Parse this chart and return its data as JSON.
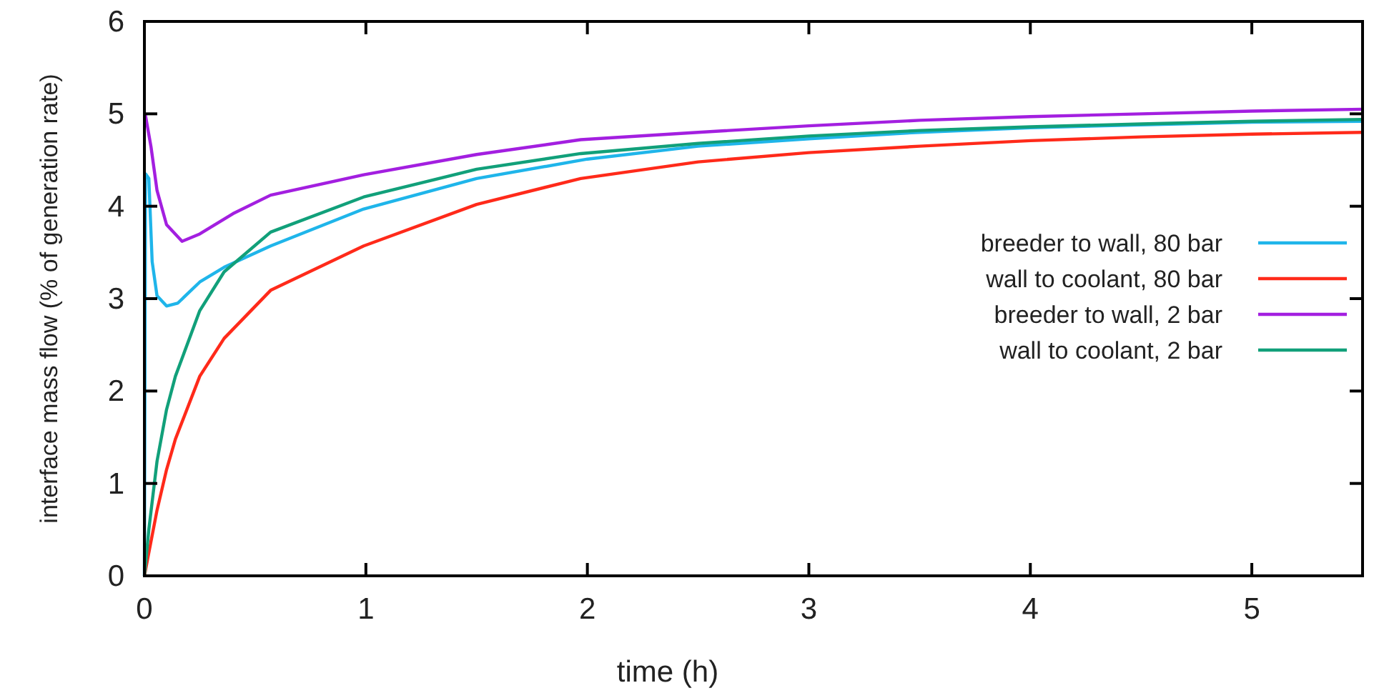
{
  "chart_data": {
    "type": "line",
    "xlabel": "time (h)",
    "ylabel": "interface mass flow (% of generation rate)",
    "xlim": [
      0,
      5.5
    ],
    "ylim": [
      0,
      6
    ],
    "xticks": [
      0,
      1,
      2,
      3,
      4,
      5
    ],
    "yticks": [
      0,
      1,
      2,
      3,
      4,
      5,
      6
    ],
    "grid": false,
    "legend": "right",
    "marker": "none",
    "line_style": "solid",
    "series": [
      {
        "name": "breeder to wall, 80 bar",
        "color": "#1fb5ea",
        "x": [
          0,
          0.005,
          0.02,
          0.035,
          0.057,
          0.1,
          0.15,
          0.25,
          0.36,
          0.57,
          0.99,
          1.5,
          2,
          2.5,
          3,
          3.5,
          4,
          4.5,
          5,
          5.5
        ],
        "values": [
          0,
          4.35,
          4.3,
          3.4,
          3.03,
          2.92,
          2.95,
          3.18,
          3.34,
          3.57,
          3.97,
          4.3,
          4.51,
          4.65,
          4.73,
          4.8,
          4.85,
          4.88,
          4.91,
          4.92
        ]
      },
      {
        "name": "wall to coolant, 80 bar",
        "color": "#ff2a1a",
        "x": [
          0,
          0.02,
          0.057,
          0.1,
          0.14,
          0.25,
          0.36,
          0.57,
          0.99,
          1.5,
          1.97,
          2.5,
          3,
          3.5,
          4,
          4.5,
          5,
          5.5
        ],
        "values": [
          0,
          0.25,
          0.71,
          1.15,
          1.48,
          2.16,
          2.57,
          3.09,
          3.57,
          4.02,
          4.3,
          4.48,
          4.58,
          4.65,
          4.71,
          4.75,
          4.78,
          4.8
        ]
      },
      {
        "name": "breeder to wall, 2 bar",
        "color": "#a31fe0",
        "x": [
          0,
          0.005,
          0.03,
          0.057,
          0.1,
          0.17,
          0.25,
          0.4,
          0.57,
          0.99,
          1.5,
          1.97,
          2.5,
          3,
          3.5,
          4,
          4.5,
          5,
          5.5
        ],
        "values": [
          5,
          4.98,
          4.64,
          4.17,
          3.8,
          3.62,
          3.7,
          3.92,
          4.12,
          4.34,
          4.56,
          4.72,
          4.8,
          4.87,
          4.93,
          4.97,
          5,
          5.03,
          5.05
        ]
      },
      {
        "name": "wall to coolant, 2 bar",
        "color": "#11a07a",
        "x": [
          0,
          0.02,
          0.057,
          0.1,
          0.14,
          0.25,
          0.36,
          0.57,
          0.99,
          1.5,
          1.97,
          2.5,
          3,
          3.5,
          4,
          4.5,
          5,
          5.5
        ],
        "values": [
          0,
          0.5,
          1.24,
          1.8,
          2.16,
          2.87,
          3.29,
          3.72,
          4.1,
          4.4,
          4.57,
          4.68,
          4.76,
          4.82,
          4.86,
          4.89,
          4.92,
          4.94
        ]
      }
    ]
  }
}
